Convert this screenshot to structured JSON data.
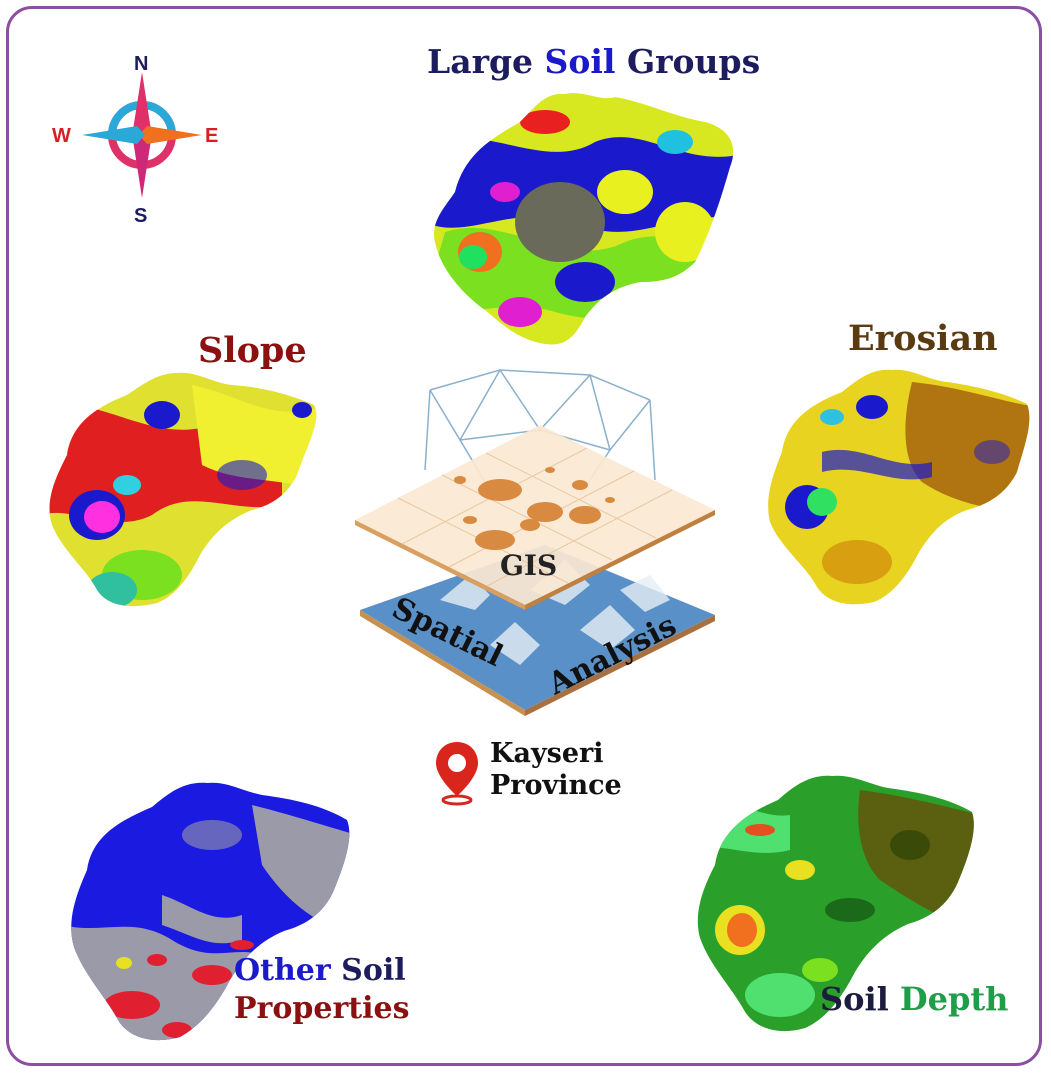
{
  "compass": {
    "north": "N",
    "south": "S",
    "east": "E",
    "west": "W"
  },
  "panels": {
    "large_soil_groups": {
      "word1": "Large",
      "word2": "Soil",
      "word3": "Groups"
    },
    "slope": {
      "title": "Slope"
    },
    "erosian": {
      "title": "Erosian"
    },
    "other_soil_properties": {
      "word1": "Other",
      "word2": "Soil",
      "word3": "Properties"
    },
    "soil_depth": {
      "word1": "Soil",
      "word2": "Depth"
    }
  },
  "center": {
    "gis_label": "GIS",
    "spatial_word": "Spatial",
    "analysis_word": "Analysis"
  },
  "location": {
    "line1": "Kayseri",
    "line2": "Province"
  },
  "colors": {
    "frame": "#8a4fa0",
    "dark_navy": "#1c1c5e",
    "blue": "#1a1acc",
    "red_title": "#8b1010",
    "brown_title": "#5a3a10",
    "green_title": "#1f9e4a",
    "pin_red": "#d9261c"
  }
}
